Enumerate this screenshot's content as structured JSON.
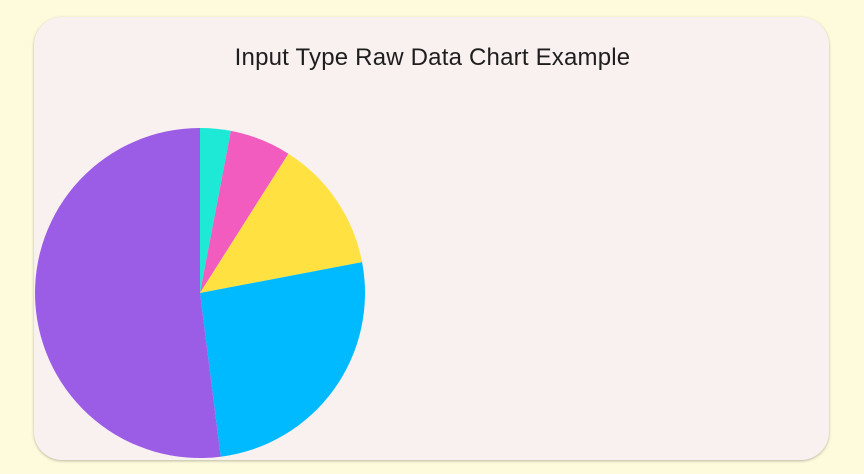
{
  "chart_data": {
    "type": "pie",
    "title": "Input Type Raw Data Chart Example",
    "values": [
      3,
      6,
      13,
      26,
      52
    ],
    "colors": [
      "#1de9d6",
      "#f25cbf",
      "#ffe241",
      "#00baff",
      "#9b5de5"
    ],
    "start_angle_deg": 0,
    "direction": "clockwise",
    "legend": false
  },
  "colors": {
    "page_background": "#fefbdd",
    "card_background": "#f9f0f0",
    "title_text": "#1e1e1e"
  }
}
